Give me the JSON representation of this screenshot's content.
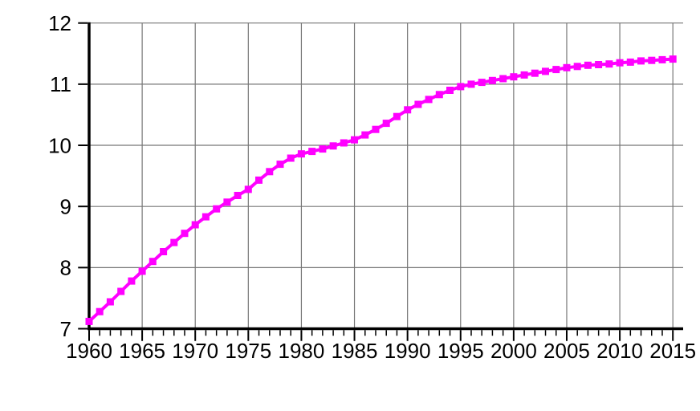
{
  "chart_data": {
    "type": "line",
    "title": "",
    "xlabel": "",
    "ylabel": "",
    "xlim": [
      1960,
      2015
    ],
    "ylim": [
      7,
      12
    ],
    "grid": true,
    "legend": "none",
    "series": [
      {
        "name": "series-magenta",
        "color": "#FF00FF",
        "marker": "square",
        "marker_size": 9,
        "line_width": 4,
        "x": [
          1960,
          1961,
          1962,
          1963,
          1964,
          1965,
          1966,
          1967,
          1968,
          1969,
          1970,
          1971,
          1972,
          1973,
          1974,
          1975,
          1976,
          1977,
          1978,
          1979,
          1980,
          1981,
          1982,
          1983,
          1984,
          1985,
          1986,
          1987,
          1988,
          1989,
          1990,
          1991,
          1992,
          1993,
          1994,
          1995,
          1996,
          1997,
          1998,
          1999,
          2000,
          2001,
          2002,
          2003,
          2004,
          2005,
          2006,
          2007,
          2008,
          2009,
          2010,
          2011,
          2012,
          2013,
          2014,
          2015
        ],
        "values": [
          7.12,
          7.28,
          7.44,
          7.61,
          7.78,
          7.94,
          8.1,
          8.26,
          8.41,
          8.56,
          8.7,
          8.83,
          8.96,
          9.07,
          9.18,
          9.28,
          9.43,
          9.57,
          9.69,
          9.79,
          9.86,
          9.9,
          9.94,
          9.99,
          10.04,
          10.09,
          10.17,
          10.26,
          10.36,
          10.47,
          10.58,
          10.67,
          10.75,
          10.83,
          10.9,
          10.96,
          11.0,
          11.03,
          11.06,
          11.09,
          11.12,
          11.15,
          11.18,
          11.21,
          11.24,
          11.27,
          11.29,
          11.31,
          11.32,
          11.33,
          11.35,
          11.36,
          11.38,
          11.39,
          11.4,
          11.41
        ]
      }
    ],
    "x_major_ticks": [
      1960,
      1965,
      1970,
      1975,
      1980,
      1985,
      1990,
      1995,
      2000,
      2005,
      2010,
      2015
    ],
    "x_tick_labels": [
      "1960",
      "1965",
      "1970",
      "1975",
      "1980",
      "1985",
      "1990",
      "1995",
      "2000",
      "2005",
      "2010",
      "2015"
    ],
    "x_minor_tick_interval_years": 1,
    "y_major_ticks": [
      7,
      8,
      9,
      10,
      11,
      12
    ],
    "y_tick_labels": [
      "7",
      "8",
      "9",
      "10",
      "11",
      "12"
    ],
    "colors": {
      "axis": "#000000",
      "gridline": "#767676",
      "tick": "#000000",
      "label": "#000000",
      "background": "#ffffff"
    }
  }
}
